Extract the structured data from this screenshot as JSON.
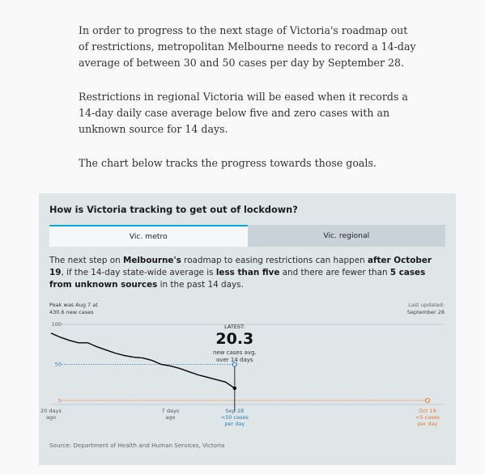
{
  "article": {
    "paragraphs": [
      "In order to progress to the next stage of Victoria's roadmap out of restrictions, metropolitan Melbourne needs to record a 14-day average of between 30 and 50 cases per day by September 28.",
      "Restrictions in regional Victoria will be eased when it records a 14-day daily case average below five and zero cases with an unknown source for 14 days.",
      "The chart below tracks the progress towards those goals."
    ]
  },
  "widget": {
    "title": "How is Victoria tracking to get out of lockdown?",
    "tabs": [
      {
        "label": "Vic. metro",
        "active": true
      },
      {
        "label": "Vic. regional",
        "active": false
      }
    ],
    "description": {
      "p1": "The next step on ",
      "b1": "Melbourne's",
      "p2": " roadmap to easing restrictions can happen ",
      "b2": "after October 19",
      "p3": ", if the 14-day state-wide average is ",
      "b3": "less than five",
      "p4": " and there are fewer than ",
      "b4": "5 cases from unknown sources",
      "p5": " in the past 14 days."
    },
    "source": "Source: Department of Health and Human Services, Victoria"
  },
  "chart_data": {
    "type": "line",
    "peak_note": [
      "Peak was Aug 7 at",
      "430.6 new cases"
    ],
    "last_updated": [
      "Last updated:",
      "September 28"
    ],
    "y_ticks": [
      100,
      50,
      5
    ],
    "ylim": [
      0,
      100
    ],
    "x_ticks": [
      {
        "label": [
          "20 days",
          "ago"
        ],
        "day": -20
      },
      {
        "label": [
          "7 days",
          "ago"
        ],
        "day": -7
      },
      {
        "label": [
          "Sep 28",
          "<50 cases",
          "per day"
        ],
        "day": 0
      },
      {
        "label": [
          "Oct 19",
          "<5 cases",
          "per day"
        ],
        "day": 21
      }
    ],
    "xlim": [
      -20,
      21
    ],
    "series": [
      {
        "points": [
          [
            -20,
            89
          ],
          [
            -19,
            84
          ],
          [
            -18,
            80
          ],
          [
            -17,
            77
          ],
          [
            -16,
            77
          ],
          [
            -15,
            72
          ],
          [
            -14,
            68
          ],
          [
            -13,
            64
          ],
          [
            -12,
            61
          ],
          [
            -11,
            59
          ],
          [
            -10,
            58
          ],
          [
            -9,
            55
          ],
          [
            -8,
            50
          ],
          [
            -7,
            48
          ],
          [
            -6,
            45
          ],
          [
            -5,
            41
          ],
          [
            -4,
            37
          ],
          [
            -3,
            34
          ],
          [
            -2,
            31
          ],
          [
            -1,
            28
          ],
          [
            0,
            20.3
          ]
        ]
      }
    ],
    "targets": [
      {
        "value": 50,
        "day": 0,
        "color": "#2f7bb5"
      },
      {
        "value": 5,
        "day": 21,
        "color": "#e8772c"
      }
    ],
    "latest": {
      "heading": "LATEST:",
      "value": "20.3",
      "sub": [
        "new cases avg.",
        "over 14 days"
      ]
    },
    "colors": {
      "line": "#000000",
      "target50": "#2f7bb5",
      "target5": "#e8772c",
      "grid": "#b7c2c6"
    }
  }
}
